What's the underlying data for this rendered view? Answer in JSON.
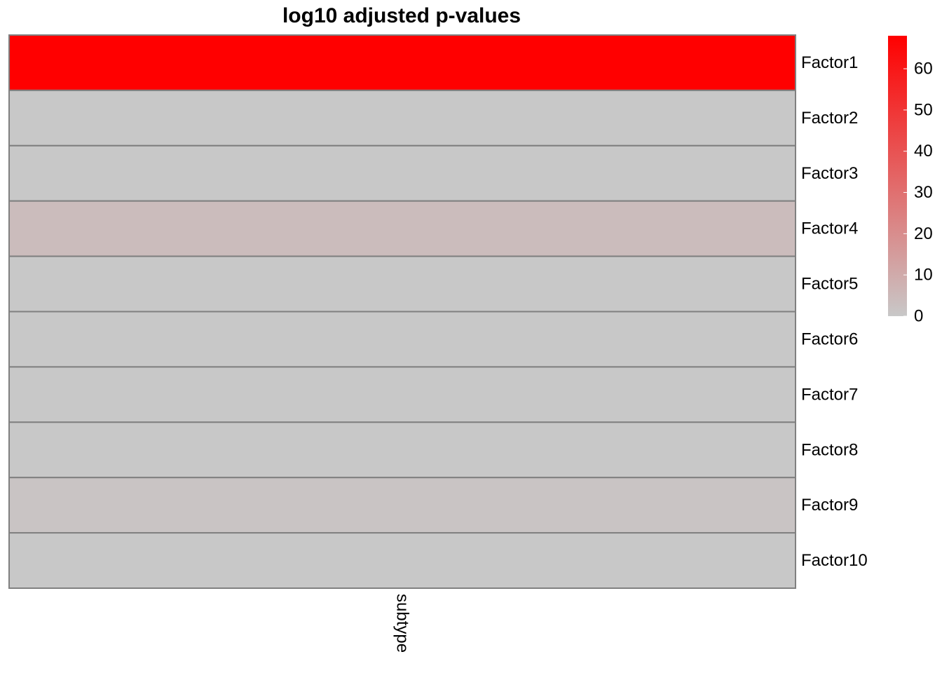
{
  "chart_data": {
    "type": "heatmap",
    "title": "log10 adjusted p-values",
    "columns": [
      "subtype"
    ],
    "rows": [
      "Factor1",
      "Factor2",
      "Factor3",
      "Factor4",
      "Factor5",
      "Factor6",
      "Factor7",
      "Factor8",
      "Factor9",
      "Factor10"
    ],
    "values": [
      [
        68
      ],
      [
        0
      ],
      [
        0
      ],
      [
        4
      ],
      [
        0
      ],
      [
        0
      ],
      [
        0
      ],
      [
        0
      ],
      [
        1.5
      ],
      [
        0
      ]
    ],
    "color_scale": {
      "min": 0,
      "max": 68,
      "low_color": "#C8C8C8",
      "high_color": "#FF0000"
    },
    "legend": {
      "ticks": [
        0,
        10,
        20,
        30,
        40,
        50,
        60
      ],
      "placement": "right"
    },
    "cell_border_color": "#808080"
  }
}
